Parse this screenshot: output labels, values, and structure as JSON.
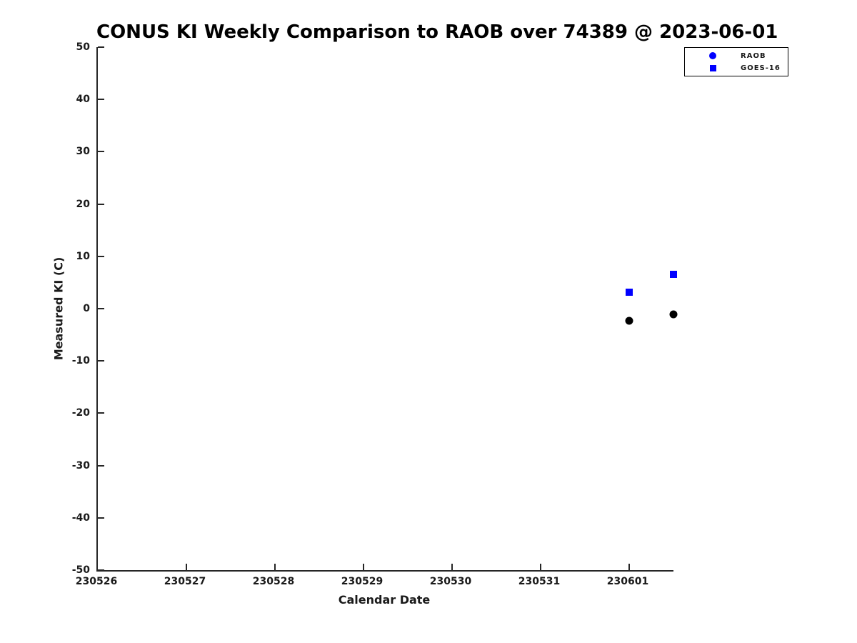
{
  "page": {
    "background": "#ffffff"
  },
  "chart_data": {
    "type": "scatter",
    "title": "CONUS KI Weekly Comparison to RAOB over 74389 @ 2023-06-01",
    "xlabel": "Calendar Date",
    "ylabel": "Measured KI (C)",
    "ylim": [
      -50,
      50
    ],
    "y_ticks": [
      50,
      40,
      30,
      20,
      10,
      0,
      -10,
      -20,
      -30,
      -40,
      -50
    ],
    "x_tick_labels": [
      "230526",
      "230527",
      "230528",
      "230529",
      "230530",
      "230531",
      "230601"
    ],
    "x_axis_end_index": 6.5,
    "grid": false,
    "legend_position": "top-right",
    "colors": {
      "axis": "#262626",
      "text": "#1a1a1a",
      "title": "#000000",
      "blue": "#0000ff",
      "black": "#000000"
    },
    "series": [
      {
        "name": "RAOB",
        "marker": "circle",
        "marker_size_px": 11,
        "marker_color": "#000000",
        "legend_marker_color": "#0000ff",
        "legend_marker_size_px": 10,
        "points": [
          {
            "x_label": "230601",
            "x_index": 6.0,
            "y": -2.3
          },
          {
            "x_label": "230601",
            "x_index": 6.5,
            "y": -1.1
          }
        ]
      },
      {
        "name": "GOES-16",
        "marker": "square",
        "marker_size_px": 10,
        "marker_color": "#0000ff",
        "legend_marker_color": "#0000ff",
        "legend_marker_size_px": 9,
        "points": [
          {
            "x_label": "230601",
            "x_index": 6.0,
            "y": 3.2
          },
          {
            "x_label": "230601",
            "x_index": 6.5,
            "y": 6.6
          }
        ]
      }
    ]
  }
}
